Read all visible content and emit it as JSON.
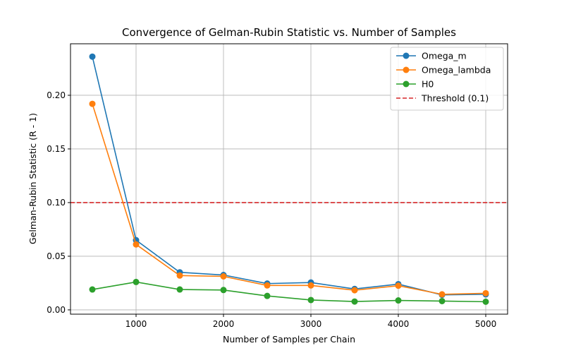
{
  "chart_data": {
    "type": "line",
    "title": "Convergence of Gelman-Rubin Statistic vs. Number of Samples",
    "xlabel": "Number of Samples per Chain",
    "ylabel": "Gelman-Rubin Statistic (R - 1)",
    "xlim": [
      250,
      5250
    ],
    "ylim": [
      -0.004,
      0.248
    ],
    "x_ticks": [
      1000,
      2000,
      3000,
      4000,
      5000
    ],
    "x_tick_labels": [
      "1000",
      "2000",
      "3000",
      "4000",
      "5000"
    ],
    "y_ticks": [
      0.0,
      0.05,
      0.1,
      0.15,
      0.2
    ],
    "y_tick_labels": [
      "0.00",
      "0.05",
      "0.10",
      "0.15",
      "0.20"
    ],
    "grid": true,
    "legend_position": "top-right",
    "x": [
      500,
      1000,
      1500,
      2000,
      2500,
      3000,
      3500,
      4000,
      4500,
      5000
    ],
    "series": [
      {
        "name": "Omega_m",
        "color": "#1f77b4",
        "values": [
          0.236,
          0.065,
          0.035,
          0.0325,
          0.0245,
          0.0255,
          0.0195,
          0.024,
          0.014,
          0.0145
        ]
      },
      {
        "name": "Omega_lambda",
        "color": "#ff7f0e",
        "values": [
          0.192,
          0.061,
          0.032,
          0.0312,
          0.0228,
          0.0228,
          0.0183,
          0.0225,
          0.0145,
          0.0155
        ]
      },
      {
        "name": "H0",
        "color": "#2ca02c",
        "values": [
          0.019,
          0.026,
          0.019,
          0.0185,
          0.013,
          0.0092,
          0.0078,
          0.0088,
          0.0082,
          0.0076
        ]
      }
    ],
    "threshold": {
      "name": "Threshold (0.1)",
      "value": 0.1,
      "color": "#d62728",
      "style": "dashed"
    }
  }
}
